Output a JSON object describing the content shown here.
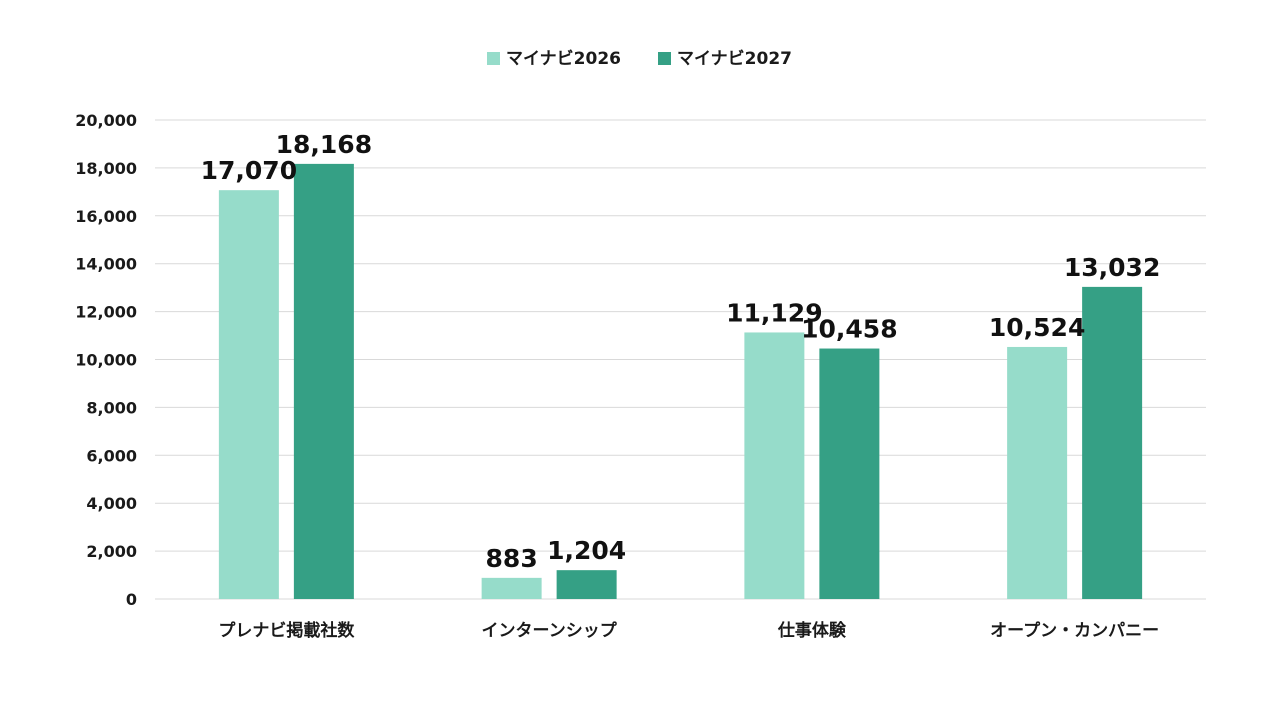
{
  "chart_data": {
    "type": "bar",
    "title": "",
    "xlabel": "",
    "ylabel": "",
    "categories": [
      "プレナビ掲載社数",
      "インターンシップ",
      "仕事体験",
      "オープン・カンパニー"
    ],
    "series": [
      {
        "name": "マイナビ2026",
        "values": [
          17070,
          883,
          11129,
          10524
        ],
        "labels": [
          "17,070",
          "883",
          "11,129",
          "10,524"
        ],
        "color": "#96dcca"
      },
      {
        "name": "マイナビ2027",
        "values": [
          18168,
          1204,
          10458,
          13032
        ],
        "labels": [
          "18,168",
          "1,204",
          "10,458",
          "13,032"
        ],
        "color": "#35a085"
      }
    ],
    "ylim": [
      0,
      20000
    ],
    "yticks": [
      0,
      2000,
      4000,
      6000,
      8000,
      10000,
      12000,
      14000,
      16000,
      18000,
      20000
    ],
    "ytick_labels": [
      "0",
      "2,000",
      "4,000",
      "6,000",
      "8,000",
      "10,000",
      "12,000",
      "14,000",
      "16,000",
      "18,000",
      "20,000"
    ],
    "grid": true,
    "legend_position": "top-center"
  }
}
